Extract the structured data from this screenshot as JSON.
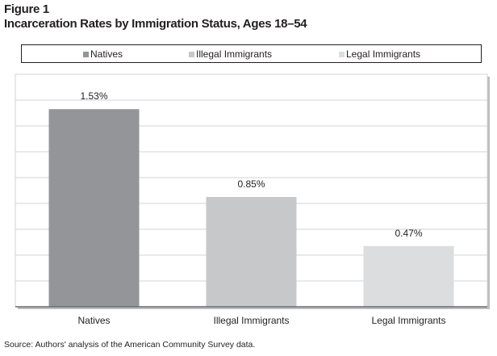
{
  "figure_label": "Figure 1",
  "chart_data": {
    "type": "bar",
    "title": "Incarceration Rates by Immigration Status, Ages 18–54",
    "categories": [
      "Natives",
      "Illegal Immigrants",
      "Legal Immigrants"
    ],
    "values": [
      1.53,
      0.85,
      0.47
    ],
    "data_labels": [
      "1.53%",
      "0.85%",
      "0.47%"
    ],
    "colors": [
      "#939598",
      "#c7c8ca",
      "#dcddde"
    ],
    "legend": [
      "Natives",
      "Illegal Immigrants",
      "Legal Immigrants"
    ],
    "legend_placement": "top",
    "ylim": [
      0,
      1.8
    ],
    "grid_step": 0.2,
    "grid": true,
    "xlabel": "",
    "ylabel": ""
  },
  "source": "Source: Authors' analysis of the American Community Survey data."
}
